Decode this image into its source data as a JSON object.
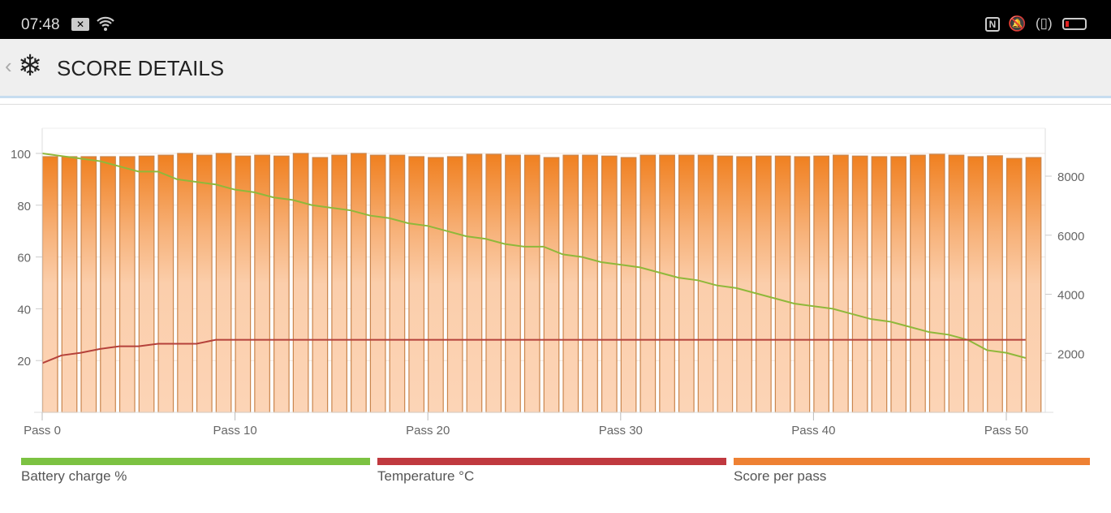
{
  "status_bar": {
    "time": "07:48",
    "icons": [
      "notification-x-icon",
      "wifi-icon",
      "nfc-icon",
      "mute-vibrate-icon",
      "vibrate-icon",
      "battery-low-icon"
    ]
  },
  "header": {
    "back_icon": "chevron-left-icon",
    "logo_icon": "snowflake-icon",
    "title": "SCORE DETAILS"
  },
  "colors": {
    "battery": "#7cc242",
    "temperature": "#c0393f",
    "score": "#ee8133"
  },
  "chart_data": {
    "type": "bar",
    "title": "",
    "x": [
      0,
      1,
      2,
      3,
      4,
      5,
      6,
      7,
      8,
      9,
      10,
      11,
      12,
      13,
      14,
      15,
      16,
      17,
      18,
      19,
      20,
      21,
      22,
      23,
      24,
      25,
      26,
      27,
      28,
      29,
      30,
      31,
      32,
      33,
      34,
      35,
      36,
      37,
      38,
      39,
      40,
      41,
      42,
      43,
      44,
      45,
      46,
      47,
      48,
      49,
      50,
      51
    ],
    "x_tick_labels": [
      "Pass 0",
      "Pass 10",
      "Pass 20",
      "Pass 30",
      "Pass 40",
      "Pass 50"
    ],
    "x_ticks": [
      0,
      10,
      20,
      30,
      40,
      50
    ],
    "left_axis": {
      "ticks": [
        20,
        40,
        60,
        80,
        100
      ],
      "labels": [
        "20",
        "40",
        "60",
        "80",
        "100"
      ],
      "ylim": [
        0,
        100
      ]
    },
    "right_axis": {
      "ticks": [
        2000,
        4000,
        6000,
        8000
      ],
      "labels": [
        "2000",
        "4000",
        "6000",
        "8000"
      ],
      "ylim": [
        0,
        8770
      ]
    },
    "grid": true,
    "legend_position": "bottom",
    "series": [
      {
        "name": "Battery charge %",
        "type": "line",
        "axis": "left",
        "values": [
          100,
          99,
          98,
          97,
          95,
          93,
          93,
          90,
          89,
          88,
          86,
          85,
          83,
          82,
          80,
          79,
          78,
          76,
          75,
          73,
          72,
          70,
          68,
          67,
          65,
          64,
          64,
          61,
          60,
          58,
          57,
          56,
          54,
          52,
          51,
          49,
          48,
          46,
          44,
          42,
          41,
          40,
          38,
          36,
          35,
          33,
          31,
          30,
          28,
          24,
          23,
          21
        ]
      },
      {
        "name": "Temperature °C",
        "type": "line",
        "axis": "left",
        "values": [
          19,
          22,
          23,
          24.5,
          25.5,
          25.5,
          26.5,
          26.5,
          26.5,
          28,
          28,
          28,
          28,
          28,
          28,
          28,
          28,
          28,
          28,
          28,
          28,
          28,
          28,
          28,
          28,
          28,
          28,
          28,
          28,
          28,
          28,
          28,
          28,
          28,
          28,
          28,
          28,
          28,
          28,
          28,
          28,
          28,
          28,
          28,
          28,
          28,
          28,
          28,
          28,
          28,
          28,
          28
        ]
      },
      {
        "name": "Score per pass",
        "type": "bar",
        "axis": "right",
        "values": [
          8660,
          8660,
          8660,
          8660,
          8660,
          8680,
          8710,
          8770,
          8710,
          8770,
          8680,
          8710,
          8680,
          8770,
          8630,
          8710,
          8770,
          8710,
          8710,
          8660,
          8630,
          8660,
          8740,
          8740,
          8710,
          8710,
          8630,
          8710,
          8710,
          8680,
          8630,
          8710,
          8710,
          8710,
          8710,
          8680,
          8660,
          8680,
          8680,
          8660,
          8680,
          8710,
          8680,
          8660,
          8660,
          8710,
          8740,
          8710,
          8660,
          8690,
          8600,
          8630
        ]
      }
    ]
  },
  "legend": [
    {
      "label": "Battery charge %"
    },
    {
      "label": "Temperature °C"
    },
    {
      "label": "Score per pass"
    }
  ]
}
